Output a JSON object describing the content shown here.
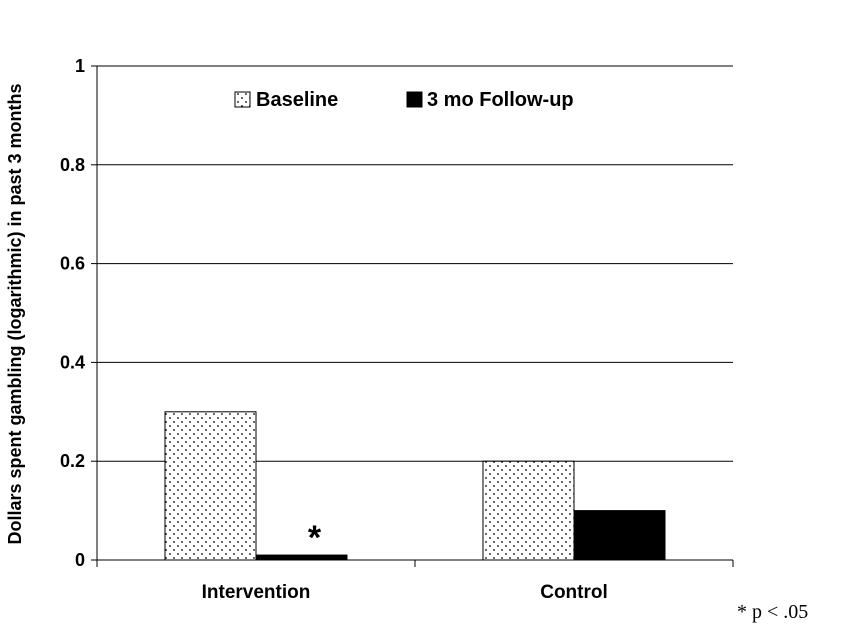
{
  "chart_data": {
    "type": "bar",
    "ylabel": "Dollars spent gambling (logarithmic) in past 3 months",
    "ylim": [
      0,
      1
    ],
    "yticks": [
      0,
      0.2,
      0.4,
      0.6,
      0.8,
      1
    ],
    "ytick_labels": [
      "0",
      "0.2",
      "0.4",
      "0.6",
      "0.8",
      "1"
    ],
    "categories": [
      "Intervention",
      "Control"
    ],
    "series": [
      {
        "name": "Baseline",
        "values": [
          0.3,
          0.2
        ],
        "pattern": "dotted",
        "color": "#ffffff"
      },
      {
        "name": "3 mo Follow-up",
        "values": [
          0.01,
          0.1
        ],
        "pattern": "solid",
        "color": "#000000"
      }
    ],
    "grid": true,
    "legend": "top-center",
    "annotations": [
      {
        "text": "*",
        "category": "Intervention",
        "series": "3 mo Follow-up"
      }
    ],
    "footnote": "* p < .05"
  }
}
